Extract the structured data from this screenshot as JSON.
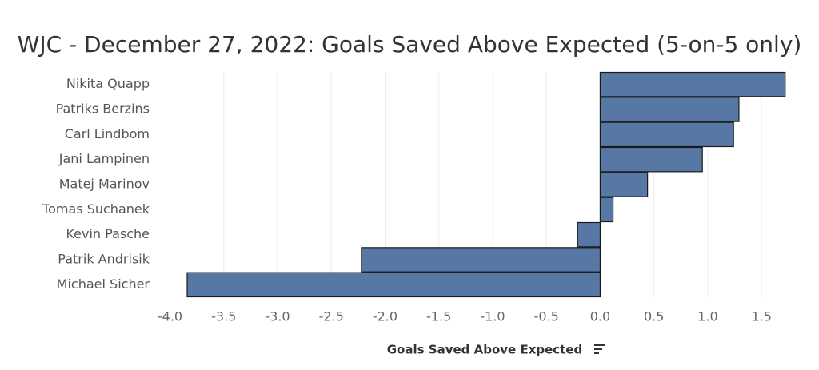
{
  "chart_data": {
    "type": "hbar",
    "title": "WJC - December 27, 2022: Goals Saved Above Expected (5-on-5 only)",
    "x_label": "Goals Saved Above Expected",
    "categories": [
      "Nikita Quapp",
      "Patriks Berzins",
      "Carl Lindbom",
      "Jani Lampinen",
      "Matej Marinov",
      "Tomas Suchanek",
      "Kevin Pasche",
      "Patrik Andrisik",
      "Michael Sicher"
    ],
    "values": [
      1.72,
      1.29,
      1.24,
      0.95,
      0.44,
      0.12,
      -0.21,
      -2.22,
      -3.84
    ],
    "color": "#5778a4",
    "xlim": [
      -4.13,
      1.93
    ],
    "xticks": [
      {
        "value": -4,
        "label": "-4.0"
      },
      -3.5,
      {
        "value": -3,
        "label": "-3.0"
      },
      -2.5,
      {
        "value": -2,
        "label": "-2.0"
      },
      -1.5,
      {
        "value": -1,
        "label": "-1.0"
      },
      -0.5,
      {
        "value": 0,
        "label": "0.0"
      },
      0.5,
      {
        "value": 1,
        "label": "1.0"
      },
      1.5
    ],
    "grid": true
  }
}
